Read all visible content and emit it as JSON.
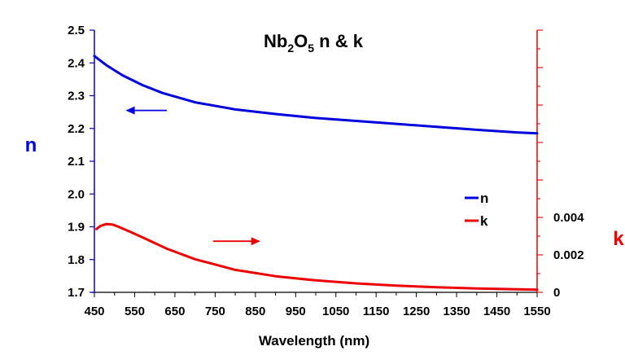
{
  "chart_data": {
    "type": "line",
    "title_parts": {
      "a": "Nb",
      "s1": "2",
      "b": "O",
      "s2": "5",
      "c": " n & k"
    },
    "xlabel": "Wavelength (nm)",
    "ylabel_left": "n",
    "ylabel_right": "k",
    "x_ticks": [
      450,
      550,
      650,
      750,
      850,
      950,
      1050,
      1150,
      1250,
      1350,
      1450,
      1550
    ],
    "x_range": [
      450,
      1550
    ],
    "y_left_ticks": [
      "1.7",
      "1.8",
      "1.9",
      "2.0",
      "2.1",
      "2.2",
      "2.3",
      "2.4",
      "2.5"
    ],
    "y_left_range": [
      1.7,
      2.5
    ],
    "y_right_labeled_ticks": [
      {
        "value": 0,
        "label": "0"
      },
      {
        "value": 0.002,
        "label": "0.002"
      },
      {
        "value": 0.004,
        "label": "0.004"
      }
    ],
    "y_right_range": [
      0,
      0.014
    ],
    "y_right_minor_step": 0.001,
    "legend": [
      {
        "name": "n",
        "color": "#0000dd"
      },
      {
        "name": "k",
        "color": "#ee0000"
      }
    ],
    "series": [
      {
        "name": "n",
        "axis": "left",
        "color": "#0000dd",
        "x": [
          450,
          480,
          520,
          570,
          620,
          700,
          800,
          900,
          1000,
          1100,
          1200,
          1300,
          1400,
          1500,
          1550
        ],
        "y": [
          2.421,
          2.393,
          2.362,
          2.332,
          2.308,
          2.28,
          2.258,
          2.244,
          2.232,
          2.223,
          2.214,
          2.205,
          2.196,
          2.188,
          2.185
        ]
      },
      {
        "name": "k",
        "axis": "right",
        "color": "#ee0000",
        "x": [
          455,
          465,
          480,
          495,
          510,
          540,
          580,
          630,
          700,
          800,
          900,
          1000,
          1100,
          1200,
          1300,
          1400,
          1500,
          1550
        ],
        "y": [
          0.00338,
          0.00355,
          0.00365,
          0.00362,
          0.0035,
          0.00322,
          0.00283,
          0.00233,
          0.00177,
          0.0012,
          0.00086,
          0.00064,
          0.00048,
          0.00036,
          0.00027,
          0.00021,
          0.00016,
          0.00014
        ]
      }
    ],
    "annotations": [
      {
        "type": "arrow",
        "direction": "left",
        "axis": "left",
        "color": "#0000dd",
        "x_from": 630,
        "x_to": 530,
        "y": 2.255
      },
      {
        "type": "arrow",
        "direction": "right",
        "axis": "right",
        "color": "#ee0000",
        "x_from": 745,
        "x_to": 860,
        "y": 0.00273
      }
    ]
  }
}
